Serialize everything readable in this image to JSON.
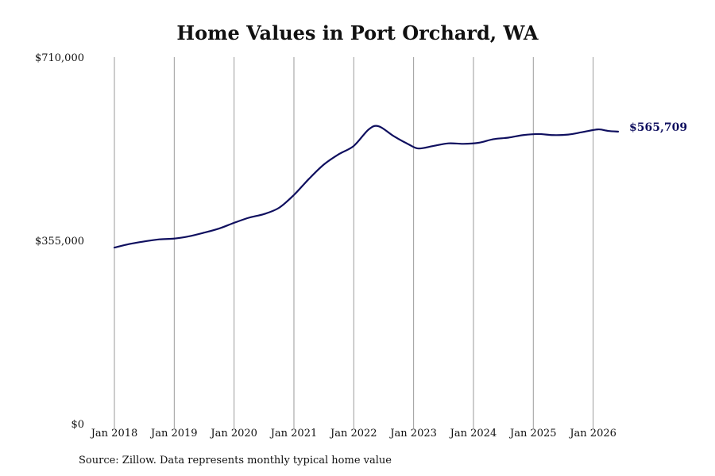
{
  "chart_data": {
    "type": "line",
    "title": "Home Values in Port Orchard, WA",
    "xlabel": "",
    "ylabel": "",
    "source": "Source: Zillow. Data represents monthly typical home value",
    "x_ticks": [
      "Jan 2018",
      "Jan 2019",
      "Jan 2020",
      "Jan 2021",
      "Jan 2022",
      "Jan 2023",
      "Jan 2024",
      "Jan 2025",
      "Jan 2026"
    ],
    "y_ticks": [
      "$0",
      "$355,000",
      "$710,000"
    ],
    "y_tick_values": [
      0,
      355000,
      710000
    ],
    "ylim": [
      0,
      710000
    ],
    "xlim": [
      "Jan 2018",
      "Jun 2026"
    ],
    "grid": "vertical",
    "line_color": "#0f0f5f",
    "grid_color": "#9a9a9a",
    "end_label": "$565,709",
    "series": [
      {
        "points": [
          [
            "2018-01",
            341000
          ],
          [
            "2018-04",
            348000
          ],
          [
            "2018-07",
            353000
          ],
          [
            "2018-10",
            357000
          ],
          [
            "2019-01",
            358500
          ],
          [
            "2019-04",
            363000
          ],
          [
            "2019-07",
            370000
          ],
          [
            "2019-10",
            378000
          ],
          [
            "2020-01",
            389000
          ],
          [
            "2020-04",
            399000
          ],
          [
            "2020-07",
            406000
          ],
          [
            "2020-10",
            418000
          ],
          [
            "2021-01",
            443000
          ],
          [
            "2021-04",
            474000
          ],
          [
            "2021-07",
            502000
          ],
          [
            "2021-10",
            522000
          ],
          [
            "2022-01",
            538000
          ],
          [
            "2022-04",
            570000
          ],
          [
            "2022-06",
            576000
          ],
          [
            "2022-09",
            557000
          ],
          [
            "2022-12",
            541000
          ],
          [
            "2023-02",
            533000
          ],
          [
            "2023-05",
            538000
          ],
          [
            "2023-08",
            543000
          ],
          [
            "2023-11",
            542000
          ],
          [
            "2024-02",
            544000
          ],
          [
            "2024-05",
            551000
          ],
          [
            "2024-08",
            554000
          ],
          [
            "2024-11",
            559000
          ],
          [
            "2025-02",
            561000
          ],
          [
            "2025-05",
            559000
          ],
          [
            "2025-08",
            560000
          ],
          [
            "2025-11",
            565000
          ],
          [
            "2026-02",
            570000
          ],
          [
            "2026-04",
            567000
          ],
          [
            "2026-06",
            565709
          ]
        ]
      }
    ]
  }
}
